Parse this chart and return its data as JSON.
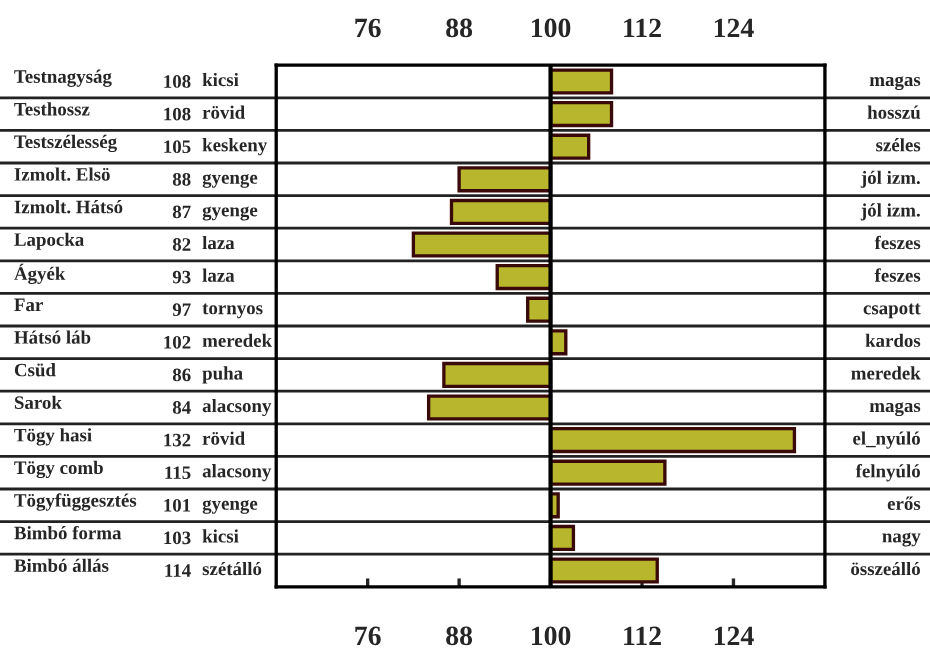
{
  "chart_data": {
    "type": "bar",
    "orientation": "horizontal",
    "categories": [
      "Testnagyság",
      "Testhossz",
      "Testszélesség",
      "Izmolt. Elsö",
      "Izmolt. Hátsó",
      "Lapocka",
      "Ágyék",
      "Far",
      "Hátsó láb",
      "Csüd",
      "Sarok",
      "Tögy hasi",
      "Tögy comb",
      "Tögyfüggesztés",
      "Bimbó forma",
      "Bimbó állás"
    ],
    "base": [
      100,
      100,
      100,
      100,
      100,
      100,
      100,
      100,
      100,
      100,
      100,
      100,
      100,
      100,
      100,
      100
    ],
    "values": [
      8,
      8,
      5,
      -12,
      -13,
      -18,
      -7,
      -3,
      2,
      -14,
      -16,
      32,
      15,
      1,
      3,
      14
    ],
    "value_labels": [
      "108",
      "108",
      "105",
      "88",
      "87",
      "82",
      "93",
      "97",
      "102",
      "86",
      "84",
      "132",
      "115",
      "101",
      "103",
      "114"
    ],
    "color": "#b8b62c",
    "xlim": [
      64,
      136
    ],
    "xticks": [
      76,
      88,
      100,
      112,
      124
    ],
    "x2lim": [
      64,
      136
    ],
    "x2ticks": [
      76,
      88,
      100,
      112,
      124
    ],
    "ref_lines": [
      {
        "axis": "x",
        "value": 100,
        "color": "#000000"
      }
    ],
    "grid": "y",
    "legend": false,
    "annotations": [
      "kicsi",
      "rövid",
      "keskeny",
      "gyenge",
      "gyenge",
      "laza",
      "laza",
      "tornyos",
      "meredek",
      "puha",
      "alacsony",
      "rövid",
      "alacsony",
      "gyenge",
      "kicsi",
      "szétálló",
      "magas",
      "hosszú",
      "széles",
      "jól izm.",
      "jól izm.",
      "feszes",
      "feszes",
      "csapott",
      "kardos",
      "meredek",
      "magas",
      "el_nyúló",
      "felnyúló",
      "erős",
      "nagy",
      "összeálló"
    ]
  }
}
